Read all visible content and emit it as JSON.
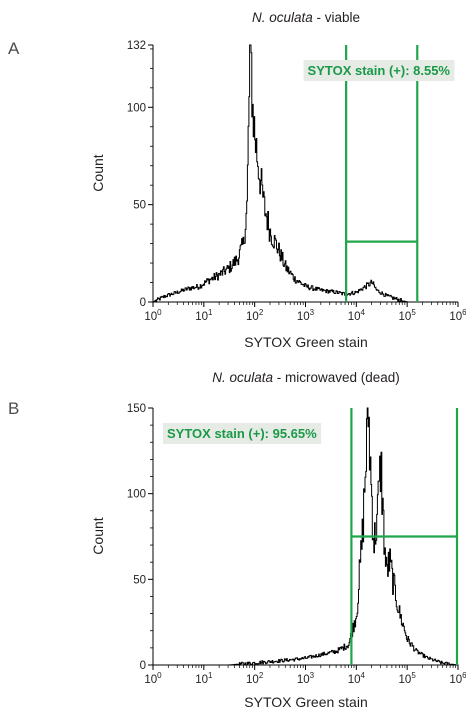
{
  "panel_letters": [
    "A",
    "B"
  ],
  "colors": {
    "gate": "#1fa64a",
    "trace": "#000000",
    "label_bg": "#e6ebe6",
    "label_text": "#1a9a48"
  },
  "chart_data": [
    {
      "type": "histogram",
      "panel": "A",
      "title_italic": "N. oculata",
      "title_rest": " - viable",
      "xlabel": "SYTOX Green stain",
      "ylabel": "Count",
      "x_scale": "log10",
      "xlim": [
        1,
        1000000
      ],
      "x_ticks": [
        {
          "base": "10",
          "exp": "0"
        },
        {
          "base": "10",
          "exp": "1"
        },
        {
          "base": "10",
          "exp": "2"
        },
        {
          "base": "10",
          "exp": "3"
        },
        {
          "base": "10",
          "exp": "4"
        },
        {
          "base": "10",
          "exp": "5"
        },
        {
          "base": "10",
          "exp": "6"
        }
      ],
      "ylim": [
        0,
        132
      ],
      "y_ticks": [
        0,
        50,
        100,
        132
      ],
      "gate": {
        "x_start": 6300,
        "x_end": 158000,
        "bar_y": 31
      },
      "gate_label": "SYTOX stain (+): 8.55%",
      "gate_label_pos": "top-right",
      "profile": [
        [
          1.0,
          0
        ],
        [
          1.7,
          3
        ],
        [
          3,
          5
        ],
        [
          5,
          7
        ],
        [
          8,
          8
        ],
        [
          12,
          11
        ],
        [
          20,
          14
        ],
        [
          30,
          17
        ],
        [
          45,
          22
        ],
        [
          60,
          30
        ],
        [
          70,
          50
        ],
        [
          75,
          90
        ],
        [
          80,
          132
        ],
        [
          85,
          120
        ],
        [
          90,
          100
        ],
        [
          100,
          85
        ],
        [
          120,
          68
        ],
        [
          150,
          50
        ],
        [
          200,
          36
        ],
        [
          300,
          26
        ],
        [
          400,
          18
        ],
        [
          600,
          12
        ],
        [
          1000,
          8
        ],
        [
          2000,
          6
        ],
        [
          4000,
          5
        ],
        [
          6000,
          4
        ],
        [
          10000,
          5
        ],
        [
          15000,
          8
        ],
        [
          20000,
          10
        ],
        [
          25000,
          6
        ],
        [
          40000,
          3
        ],
        [
          70000,
          1
        ],
        [
          100000,
          0
        ]
      ]
    },
    {
      "type": "histogram",
      "panel": "B",
      "title_italic": "N. oculata",
      "title_rest": " - microwaved (dead)",
      "xlabel": "SYTOX Green stain",
      "ylabel": "Count",
      "x_scale": "log10",
      "xlim": [
        1,
        1000000
      ],
      "x_ticks": [
        {
          "base": "10",
          "exp": "0"
        },
        {
          "base": "10",
          "exp": "1"
        },
        {
          "base": "10",
          "exp": "2"
        },
        {
          "base": "10",
          "exp": "3"
        },
        {
          "base": "10",
          "exp": "4"
        },
        {
          "base": "10",
          "exp": "5"
        },
        {
          "base": "10",
          "exp": "6"
        }
      ],
      "ylim": [
        0,
        150
      ],
      "y_ticks": [
        0,
        50,
        100,
        150
      ],
      "gate": {
        "x_start": 8000,
        "x_end": 1000000,
        "bar_y": 75
      },
      "gate_label": "SYTOX stain (+): 95.65%",
      "gate_label_pos": "top-left",
      "profile": [
        [
          1.0,
          0
        ],
        [
          30,
          0
        ],
        [
          80,
          1
        ],
        [
          200,
          2
        ],
        [
          500,
          3
        ],
        [
          1000,
          4
        ],
        [
          2000,
          6
        ],
        [
          4000,
          8
        ],
        [
          7000,
          12
        ],
        [
          10000,
          30
        ],
        [
          13000,
          75
        ],
        [
          15000,
          115
        ],
        [
          17000,
          150
        ],
        [
          19000,
          110
        ],
        [
          22000,
          70
        ],
        [
          26000,
          90
        ],
        [
          30000,
          118
        ],
        [
          34000,
          80
        ],
        [
          38000,
          55
        ],
        [
          45000,
          60
        ],
        [
          55000,
          45
        ],
        [
          70000,
          30
        ],
        [
          100000,
          15
        ],
        [
          150000,
          8
        ],
        [
          250000,
          4
        ],
        [
          500000,
          1
        ],
        [
          1000000,
          0
        ]
      ]
    }
  ]
}
